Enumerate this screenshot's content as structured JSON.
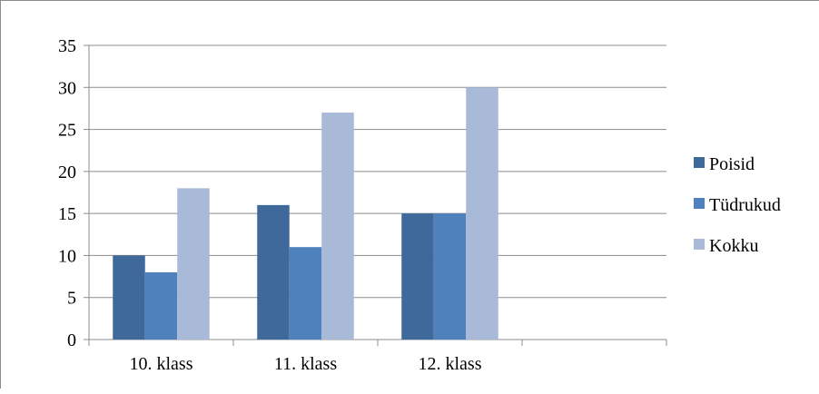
{
  "chart_data": {
    "type": "bar",
    "categories": [
      "10. klass",
      "11. klass",
      "12. klass",
      ""
    ],
    "series": [
      {
        "name": "Poisid",
        "values": [
          10,
          16,
          15,
          null
        ],
        "color": "#3f689b"
      },
      {
        "name": "Tüdrukud",
        "values": [
          8,
          11,
          15,
          null
        ],
        "color": "#4f81bd"
      },
      {
        "name": "Kokku",
        "values": [
          18,
          27,
          30,
          null
        ],
        "color": "#a9b9d8"
      }
    ],
    "ylim": [
      0,
      35
    ],
    "yticks": [
      0,
      5,
      10,
      15,
      20,
      25,
      30,
      35
    ],
    "grid": true,
    "legend_position": "right",
    "title": "",
    "xlabel": "",
    "ylabel": ""
  }
}
